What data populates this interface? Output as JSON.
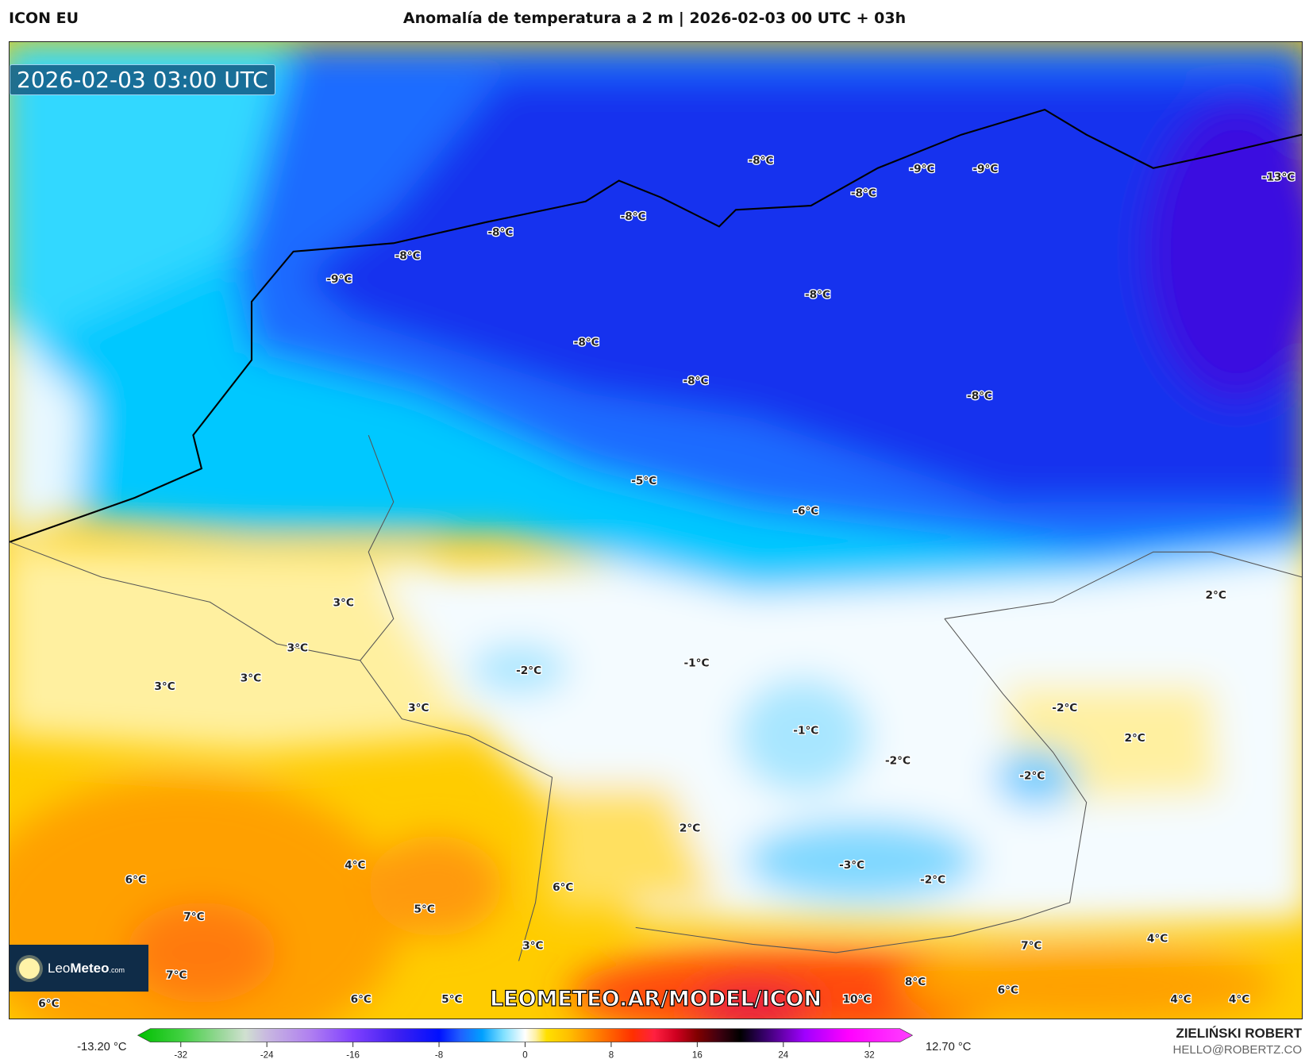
{
  "header": {
    "model": "ICON EU",
    "title": "Anomalía de temperatura a 2 m | 2026-02-03 00 UTC + 03h"
  },
  "map": {
    "timestamp": "2026-02-03 03:00 UTC",
    "watermark": "LEOMETEO.AR/MODEL/ICON",
    "logo": {
      "name": "LeoMeteo",
      "part1": "Leo",
      "part2": "Meteo",
      "suffix": ".com"
    },
    "labels": [
      "-8°C",
      "-9°C",
      "-9°C",
      "-13°C",
      "-8°C",
      "-8°C",
      "-8°C",
      "-8°C",
      "-9°C",
      "-8°C",
      "-8°C",
      "-8°C",
      "-8°C",
      "-5°C",
      "-6°C",
      "2°C",
      "3°C",
      "3°C",
      "3°C",
      "3°C",
      "-2°C",
      "-1°C",
      "3°C",
      "-2°C",
      "2°C",
      "-1°C",
      "-2°C",
      "-2°C",
      "2°C",
      "4°C",
      "6°C",
      "6°C",
      "-3°C",
      "-2°C",
      "5°C",
      "7°C",
      "7°C",
      "4°C",
      "3°C",
      "7°C",
      "8°C",
      "6°C",
      "6°C",
      "6°C",
      "5°C",
      "10°C",
      "4°C",
      "4°C"
    ]
  },
  "colorbar": {
    "min_label": "-13.20 °C",
    "max_label": "12.70 °C",
    "ticks": [
      "-32",
      "-24",
      "-16",
      "-8",
      "0",
      "8",
      "16",
      "24",
      "32"
    ],
    "tick_values": [
      -32,
      -24,
      -16,
      -8,
      0,
      8,
      16,
      24,
      32
    ],
    "range": [
      -36,
      36
    ],
    "colors": [
      [
        -36,
        "#00c000"
      ],
      [
        -32,
        "#40d040"
      ],
      [
        -28,
        "#a0d8a0"
      ],
      [
        -26,
        "#d0e0d0"
      ],
      [
        -24,
        "#c8b8e0"
      ],
      [
        -20,
        "#b080f0"
      ],
      [
        -16,
        "#8040ff"
      ],
      [
        -12,
        "#4020f0"
      ],
      [
        -8,
        "#0010ff"
      ],
      [
        -6,
        "#2060ff"
      ],
      [
        -4,
        "#00a0ff"
      ],
      [
        -2,
        "#80e0ff"
      ],
      [
        0,
        "#ffffff"
      ],
      [
        1,
        "#fff0a0"
      ],
      [
        2,
        "#ffe000"
      ],
      [
        4,
        "#ffc000"
      ],
      [
        6,
        "#ff9000"
      ],
      [
        8,
        "#ff6000"
      ],
      [
        10,
        "#ff3000"
      ],
      [
        12,
        "#ff2040"
      ],
      [
        14,
        "#d00020"
      ],
      [
        16,
        "#800000"
      ],
      [
        18,
        "#400010"
      ],
      [
        20,
        "#000000"
      ],
      [
        22,
        "#300060"
      ],
      [
        26,
        "#a000ff"
      ],
      [
        30,
        "#ff00ff"
      ],
      [
        36,
        "#ff40ff"
      ]
    ]
  },
  "credits": {
    "author": "ZIELIŃSKI ROBERT",
    "email": "HELLO@ROBERTZ.CO"
  }
}
